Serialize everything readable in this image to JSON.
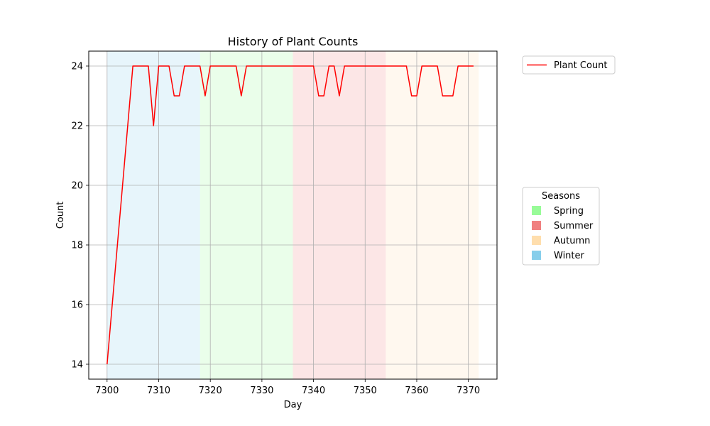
{
  "chart_data": {
    "type": "line",
    "title": "History of Plant Counts",
    "xlabel": "Day",
    "ylabel": "Count",
    "xlim": [
      7296.45,
      7375.55
    ],
    "ylim": [
      13.5,
      24.5
    ],
    "xticks": [
      7300,
      7310,
      7320,
      7330,
      7340,
      7350,
      7360,
      7370
    ],
    "yticks": [
      14,
      16,
      18,
      20,
      22,
      24
    ],
    "grid": true,
    "series": [
      {
        "name": "Plant Count",
        "color": "#ff0000",
        "x": [
          7300,
          7305,
          7306,
          7307,
          7308,
          7309,
          7310,
          7311,
          7312,
          7313,
          7314,
          7315,
          7316,
          7317,
          7318,
          7319,
          7320,
          7321,
          7322,
          7323,
          7324,
          7325,
          7326,
          7327,
          7328,
          7329,
          7330,
          7331,
          7332,
          7333,
          7334,
          7335,
          7336,
          7337,
          7338,
          7339,
          7340,
          7341,
          7342,
          7343,
          7344,
          7345,
          7346,
          7347,
          7348,
          7349,
          7350,
          7351,
          7352,
          7353,
          7354,
          7355,
          7356,
          7357,
          7358,
          7359,
          7360,
          7361,
          7362,
          7363,
          7364,
          7365,
          7366,
          7367,
          7368,
          7369,
          7370,
          7371
        ],
        "values": [
          14,
          24,
          24,
          24,
          24,
          22,
          24,
          24,
          24,
          23,
          23,
          24,
          24,
          24,
          24,
          23,
          24,
          24,
          24,
          24,
          24,
          24,
          23,
          24,
          24,
          24,
          24,
          24,
          24,
          24,
          24,
          24,
          24,
          24,
          24,
          24,
          24,
          23,
          23,
          24,
          24,
          23,
          24,
          24,
          24,
          24,
          24,
          24,
          24,
          24,
          24,
          24,
          24,
          24,
          24,
          23,
          23,
          24,
          24,
          24,
          24,
          23,
          23,
          23,
          24,
          24,
          24,
          24
        ]
      }
    ],
    "seasons": [
      {
        "name": "Winter",
        "start": 7300,
        "end": 7318,
        "color": "#87ceeb"
      },
      {
        "name": "Spring",
        "start": 7318,
        "end": 7336,
        "color": "#98fb98"
      },
      {
        "name": "Summer",
        "start": 7336,
        "end": 7354,
        "color": "#f08080"
      },
      {
        "name": "Autumn",
        "start": 7354,
        "end": 7372,
        "color": "#ffdead"
      }
    ],
    "legend_main": {
      "placement": "outside-top-right",
      "entries": [
        "Plant Count"
      ]
    },
    "legend_seasons": {
      "title": "Seasons",
      "placement": "outside-right",
      "entries": [
        {
          "label": "Spring",
          "color": "#98fb98"
        },
        {
          "label": "Summer",
          "color": "#f08080"
        },
        {
          "label": "Autumn",
          "color": "#ffdead"
        },
        {
          "label": "Winter",
          "color": "#87ceeb"
        }
      ]
    }
  }
}
